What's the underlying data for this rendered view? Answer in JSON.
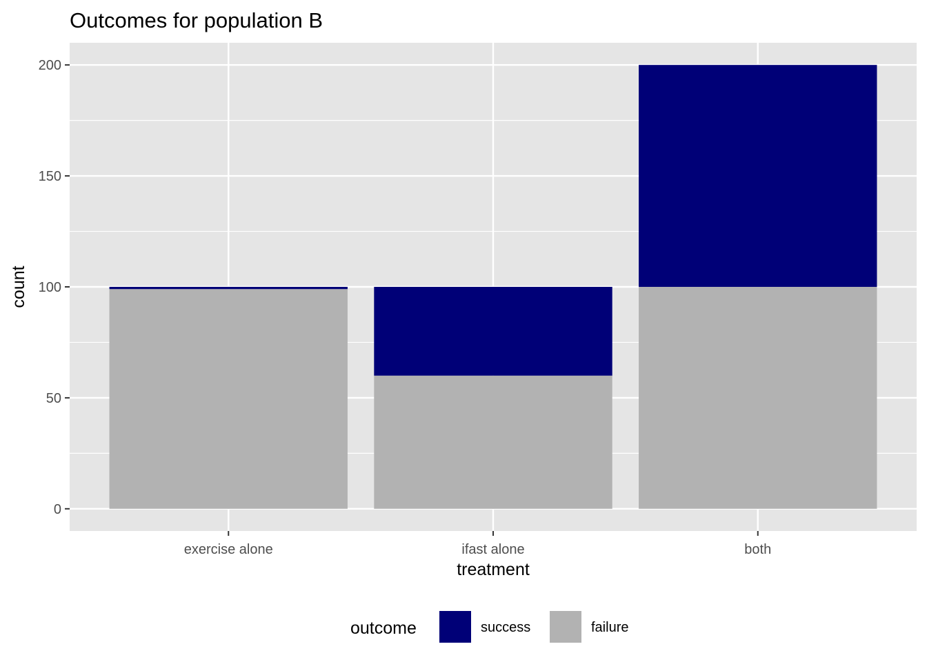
{
  "chart_data": {
    "type": "bar",
    "stacked": true,
    "title": "Outcomes for population B",
    "xlabel": "treatment",
    "ylabel": "count",
    "categories": [
      "exercise alone",
      "ifast alone",
      "both"
    ],
    "series": [
      {
        "name": "failure",
        "values": [
          99,
          60,
          100
        ],
        "color": "#b2b2b2"
      },
      {
        "name": "success",
        "values": [
          1,
          40,
          100
        ],
        "color": "#000077"
      }
    ],
    "ylim": [
      -10,
      210
    ],
    "yticks": [
      0,
      50,
      100,
      150,
      200
    ],
    "ytick_labels": [
      "0",
      "50",
      "100",
      "150",
      "200"
    ],
    "grid": true,
    "panel_color": "#e5e5e5",
    "legend": {
      "position": "bottom",
      "title": "outcome",
      "entries": [
        {
          "label": "success",
          "color": "#000077"
        },
        {
          "label": "failure",
          "color": "#b2b2b2"
        }
      ]
    }
  }
}
